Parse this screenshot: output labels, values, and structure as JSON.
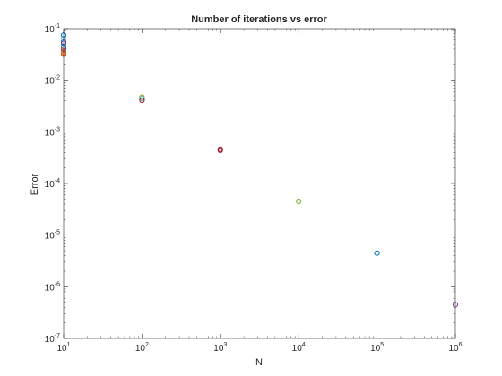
{
  "chart_data": {
    "type": "scatter",
    "title": "Number of iterations vs error",
    "xlabel": "N",
    "ylabel": "Error",
    "xscale": "log",
    "yscale": "log",
    "xlim": [
      10,
      1000000
    ],
    "ylim": [
      1e-07,
      0.1
    ],
    "grid": false,
    "legend": "none",
    "marker": "open-circle",
    "x_ticks": [
      {
        "value": 10,
        "base": "10",
        "exp": "1"
      },
      {
        "value": 100,
        "base": "10",
        "exp": "2"
      },
      {
        "value": 1000,
        "base": "10",
        "exp": "3"
      },
      {
        "value": 10000,
        "base": "10",
        "exp": "4"
      },
      {
        "value": 100000,
        "base": "10",
        "exp": "5"
      },
      {
        "value": 1000000,
        "base": "10",
        "exp": "6"
      }
    ],
    "y_ticks": [
      {
        "value": 1e-07,
        "base": "10",
        "exp": "-7"
      },
      {
        "value": 1e-06,
        "base": "10",
        "exp": "-6"
      },
      {
        "value": 1e-05,
        "base": "10",
        "exp": "-5"
      },
      {
        "value": 0.0001,
        "base": "10",
        "exp": "-4"
      },
      {
        "value": 0.001,
        "base": "10",
        "exp": "-3"
      },
      {
        "value": 0.01,
        "base": "10",
        "exp": "-2"
      },
      {
        "value": 0.1,
        "base": "10",
        "exp": "-1"
      }
    ],
    "series": [
      {
        "color": "#0072BD",
        "points": [
          [
            10,
            0.075
          ],
          [
            10,
            0.052
          ],
          [
            10,
            0.045
          ],
          [
            100000,
            4.5e-06
          ]
        ]
      },
      {
        "color": "#D95319",
        "points": [
          [
            10,
            0.036
          ],
          [
            10,
            0.032
          ],
          [
            10,
            0.034
          ]
        ]
      },
      {
        "color": "#EDB120",
        "points": [
          [
            10,
            0.038
          ],
          [
            100,
            0.0045
          ]
        ]
      },
      {
        "color": "#7E2F8E",
        "points": [
          [
            10,
            0.055
          ],
          [
            10,
            0.04
          ],
          [
            1000000,
            4.5e-07
          ]
        ]
      },
      {
        "color": "#77AC30",
        "points": [
          [
            100,
            0.0047
          ],
          [
            10000,
            4.5e-05
          ]
        ]
      },
      {
        "color": "#4DBEEE",
        "points": [
          [
            10,
            0.065
          ],
          [
            100,
            0.0044
          ]
        ]
      },
      {
        "color": "#A2142F",
        "points": [
          [
            100,
            0.0041
          ],
          [
            1000,
            0.00046
          ],
          [
            1000,
            0.00044
          ]
        ]
      }
    ]
  }
}
